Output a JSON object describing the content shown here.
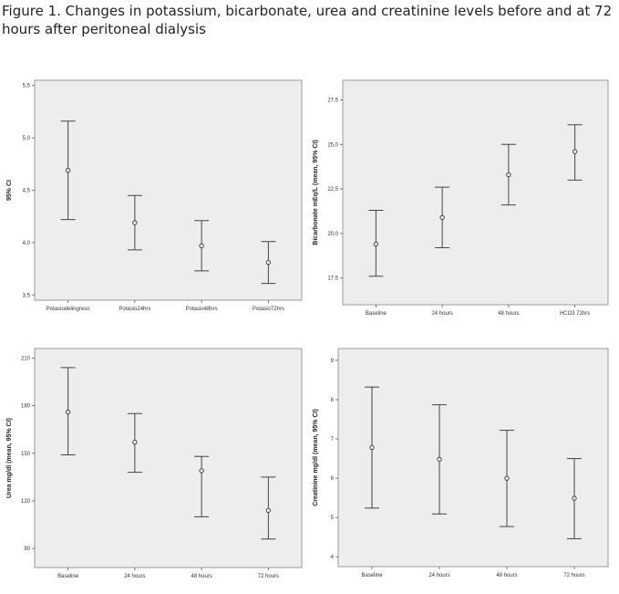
{
  "caption": "Figure 1. Changes in potassium, bicarbonate, urea and creatinine levels before and at 72 hours after peritoneal dialysis",
  "chart_data": [
    {
      "type": "errorbar",
      "categories": [
        "Potasiodelingreso",
        "Potasio24hrs",
        "Potasio48hrs",
        "Potasio72hrs"
      ],
      "mean": [
        4.69,
        4.19,
        3.97,
        3.81
      ],
      "lower": [
        4.22,
        3.93,
        3.73,
        3.61
      ],
      "upper": [
        5.16,
        4.45,
        4.21,
        4.01
      ],
      "ylabel": "95% CI",
      "ylim": [
        3.45,
        5.55
      ],
      "yticks": [
        3.5,
        4.0,
        4.5,
        5.0,
        5.5
      ],
      "ytick_labels": [
        "3,5",
        "4,0",
        "4,5",
        "5,0",
        "5,5"
      ],
      "grid": false
    },
    {
      "type": "errorbar",
      "categories": [
        "Baseline",
        "24 hours",
        "48 hours",
        "HCO3 72hrs"
      ],
      "mean": [
        19.4,
        20.9,
        23.3,
        24.6
      ],
      "lower": [
        17.6,
        19.2,
        21.6,
        23.0
      ],
      "upper": [
        21.3,
        22.6,
        25.0,
        26.1
      ],
      "ylabel": "Bicarbonate mEq/L (mean, 95% CI)",
      "ylim": [
        16.0,
        28.6
      ],
      "yticks": [
        17.5,
        20.0,
        22.5,
        25.0,
        27.5
      ],
      "ytick_labels": [
        "17,5",
        "20,0",
        "22,5",
        "25,0",
        "27,5"
      ],
      "grid": false
    },
    {
      "type": "errorbar",
      "categories": [
        "Baseline",
        "24 hours",
        "48 hours",
        "72 hours"
      ],
      "mean": [
        176,
        157,
        139,
        114
      ],
      "lower": [
        149,
        138,
        110,
        96
      ],
      "upper": [
        204,
        175,
        148,
        135
      ],
      "ylabel": "Urea mg/dl (mean, 95% CI)",
      "ylim": [
        78,
        216
      ],
      "yticks": [
        90,
        120,
        150,
        180,
        210
      ],
      "ytick_labels": [
        "90",
        "120",
        "150",
        "180",
        "210"
      ],
      "grid": false
    },
    {
      "type": "errorbar",
      "categories": [
        "Baseline",
        "24 hours",
        "48 hours",
        "72 hours"
      ],
      "mean": [
        6.78,
        6.48,
        6.0,
        5.49
      ],
      "lower": [
        5.24,
        5.09,
        4.77,
        4.46
      ],
      "upper": [
        8.32,
        7.87,
        7.22,
        6.5
      ],
      "ylabel": "Creatinine mg/dl (mean, 95% CI)",
      "ylim": [
        3.75,
        9.3
      ],
      "yticks": [
        4,
        5,
        6,
        7,
        8,
        9
      ],
      "ytick_labels": [
        "4",
        "5",
        "6",
        "7",
        "8",
        "9"
      ],
      "grid": false
    }
  ]
}
